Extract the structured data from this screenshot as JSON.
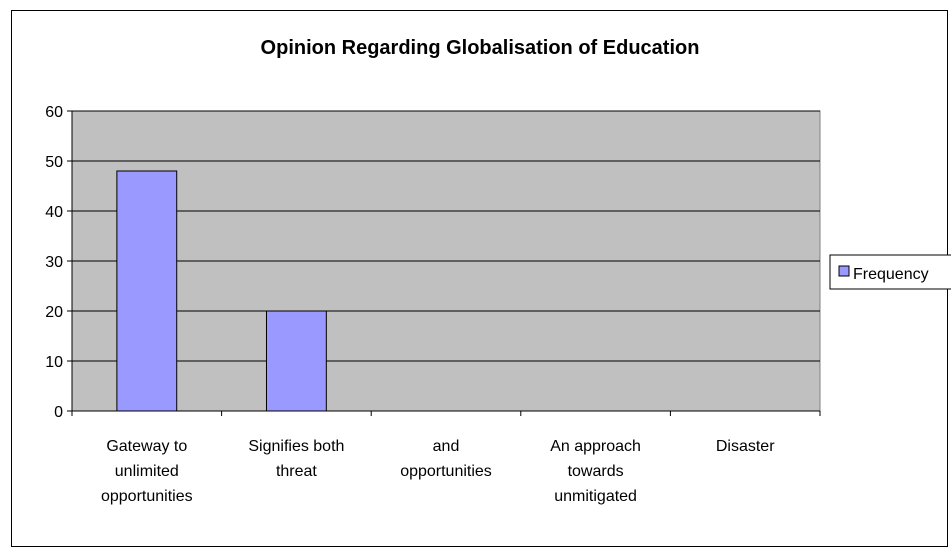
{
  "chart_data": {
    "type": "bar",
    "title": "Opinion Regarding Globalisation of Education",
    "xlabel": "",
    "ylabel": "",
    "categories": [
      [
        "Gateway to",
        "unlimited",
        "opportunities"
      ],
      [
        "Signifies both",
        "threat"
      ],
      [
        "and",
        "opportunities"
      ],
      [
        "An approach",
        "towards",
        "unmitigated"
      ],
      [
        "Disaster"
      ]
    ],
    "series": [
      {
        "name": "Frequency",
        "values": [
          48,
          20,
          0,
          0,
          0
        ],
        "color": "#9999ff"
      }
    ],
    "ylim": [
      0,
      60
    ],
    "yticks": [
      0,
      10,
      20,
      30,
      40,
      50,
      60
    ],
    "grid": true,
    "plot_background": "#c0c0c0",
    "legend_position": "right"
  }
}
